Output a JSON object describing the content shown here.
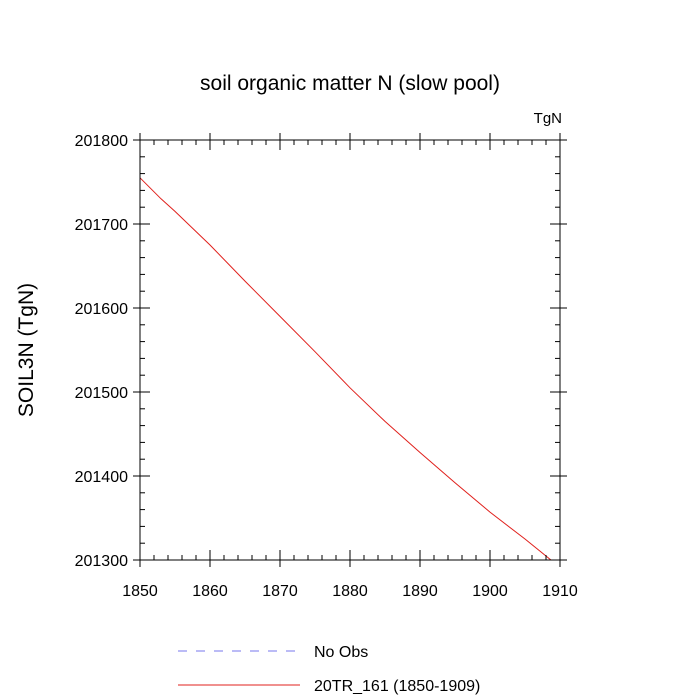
{
  "chart_data": {
    "type": "line",
    "title": "soil organic matter N (slow pool)",
    "units_label": "TgN",
    "xlabel": "",
    "ylabel": "SOIL3N  (TgN)",
    "xlim": [
      1850,
      1910
    ],
    "ylim": [
      201300,
      201800
    ],
    "x_major_ticks": [
      1850,
      1860,
      1870,
      1880,
      1890,
      1900,
      1910
    ],
    "x_minor_step": 2,
    "y_major_ticks": [
      201300,
      201400,
      201500,
      201600,
      201700,
      201800
    ],
    "y_minor_step": 20,
    "x_tick_labels": [
      "1850",
      "1860",
      "1870",
      "1880",
      "1890",
      "1900",
      "1910"
    ],
    "y_tick_labels": [
      "201300",
      "201400",
      "201500",
      "201600",
      "201700",
      "201800"
    ],
    "grid": false,
    "legend_position": "bottom",
    "series": [
      {
        "name": "No Obs",
        "color": "#7777ee",
        "dash": "dashed",
        "x": [],
        "y": []
      },
      {
        "name": "20TR_161 (1850-1909)",
        "color": "#e0201c",
        "dash": "solid",
        "x": [
          1850,
          1853,
          1855,
          1860,
          1865,
          1870,
          1875,
          1880,
          1885,
          1890,
          1895,
          1900,
          1905,
          1909
        ],
        "y": [
          201755,
          201730,
          201715,
          201675,
          201632,
          201590,
          201548,
          201505,
          201465,
          201428,
          201392,
          201357,
          201325,
          201298
        ]
      }
    ]
  }
}
